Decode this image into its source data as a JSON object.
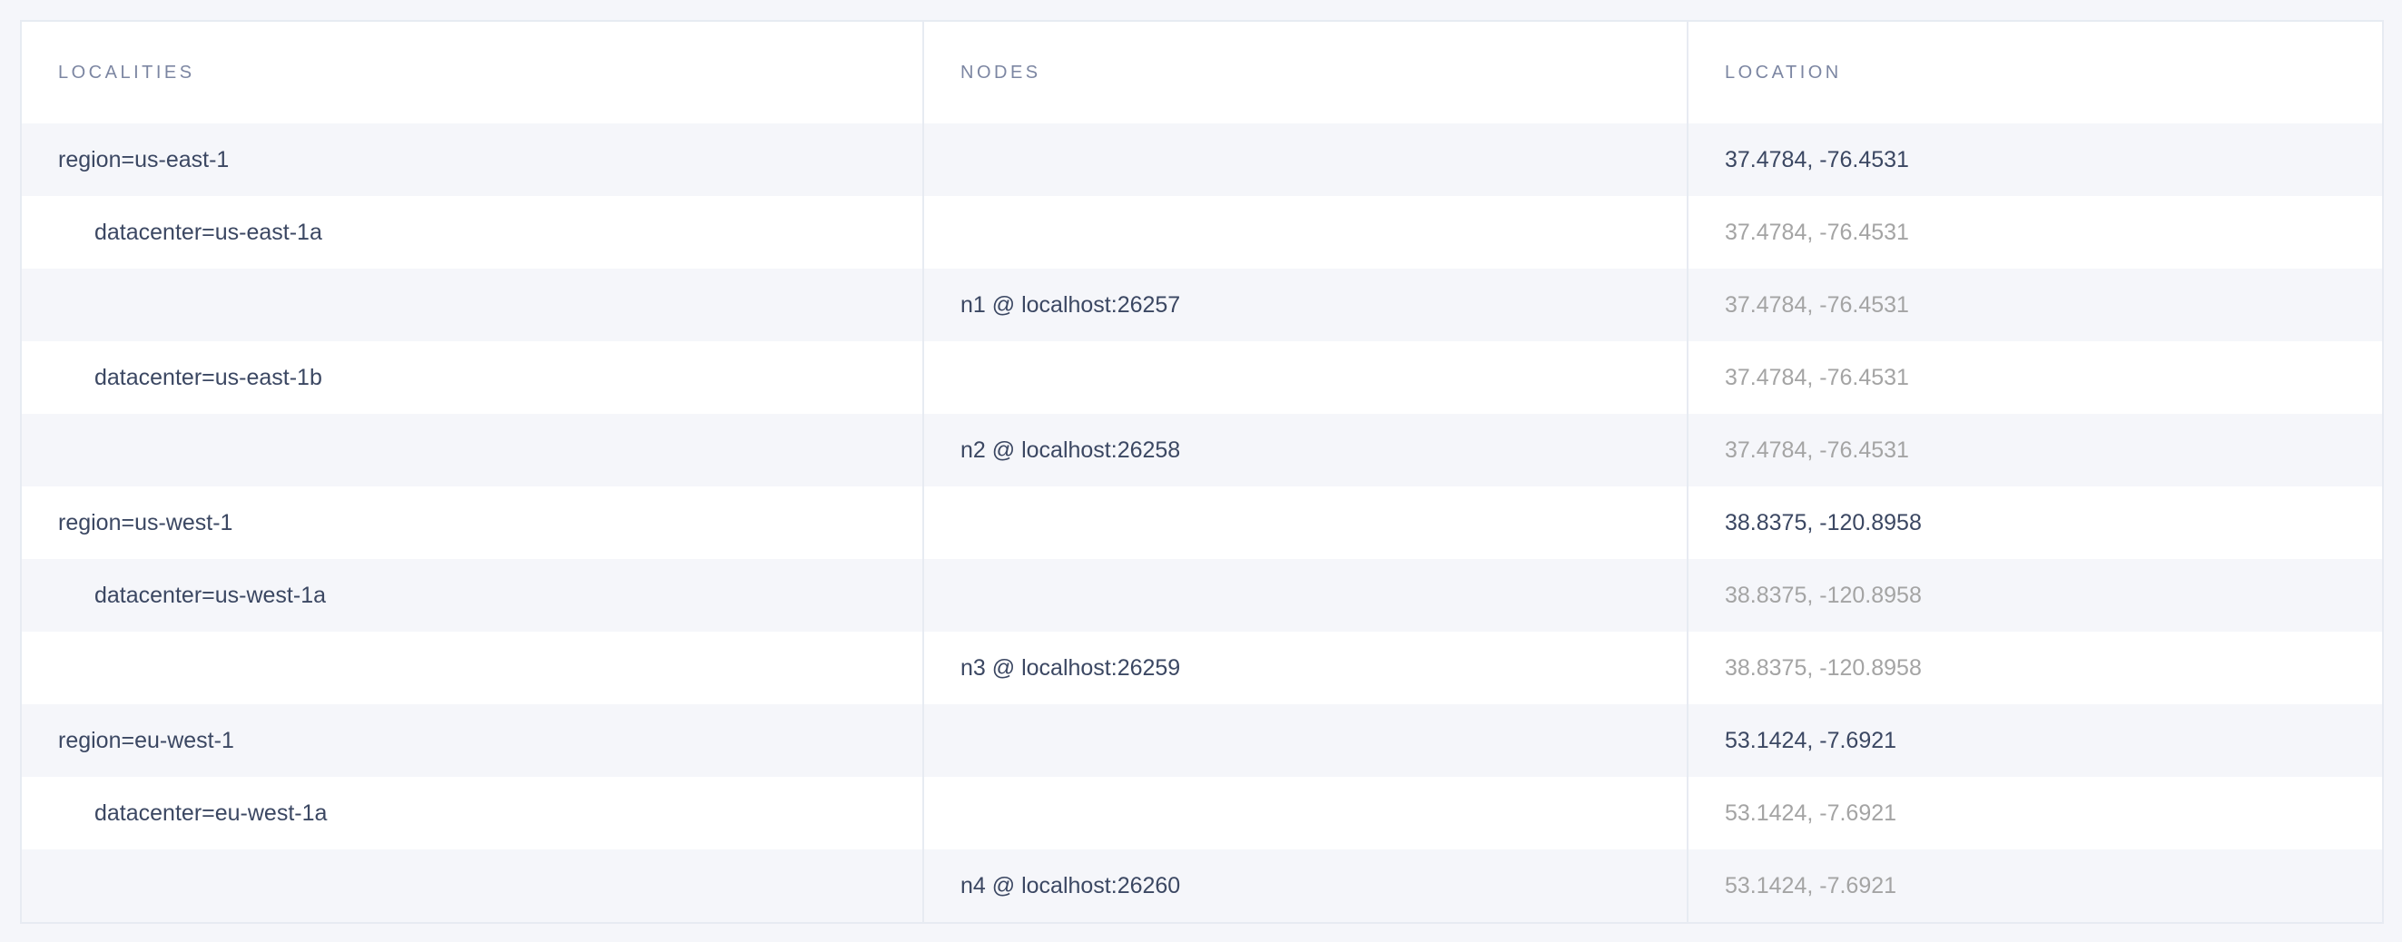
{
  "headers": {
    "localities": "LOCALITIES",
    "nodes": "NODES",
    "location": "LOCATION"
  },
  "rows": [
    {
      "locality": "region=us-east-1",
      "level": 0,
      "node": "",
      "location": "37.4784, -76.4531"
    },
    {
      "locality": "datacenter=us-east-1a",
      "level": 1,
      "node": "",
      "location": "37.4784, -76.4531"
    },
    {
      "locality": "",
      "level": 2,
      "node": "n1 @ localhost:26257",
      "location": "37.4784, -76.4531"
    },
    {
      "locality": "datacenter=us-east-1b",
      "level": 1,
      "node": "",
      "location": "37.4784, -76.4531"
    },
    {
      "locality": "",
      "level": 2,
      "node": "n2 @ localhost:26258",
      "location": "37.4784, -76.4531"
    },
    {
      "locality": "region=us-west-1",
      "level": 0,
      "node": "",
      "location": "38.8375, -120.8958"
    },
    {
      "locality": "datacenter=us-west-1a",
      "level": 1,
      "node": "",
      "location": "38.8375, -120.8958"
    },
    {
      "locality": "",
      "level": 2,
      "node": "n3 @ localhost:26259",
      "location": "38.8375, -120.8958"
    },
    {
      "locality": "region=eu-west-1",
      "level": 0,
      "node": "",
      "location": "53.1424, -7.6921"
    },
    {
      "locality": "datacenter=eu-west-1a",
      "level": 1,
      "node": "",
      "location": "53.1424, -7.6921"
    },
    {
      "locality": "",
      "level": 2,
      "node": "n4 @ localhost:26260",
      "location": "53.1424, -7.6921"
    }
  ]
}
